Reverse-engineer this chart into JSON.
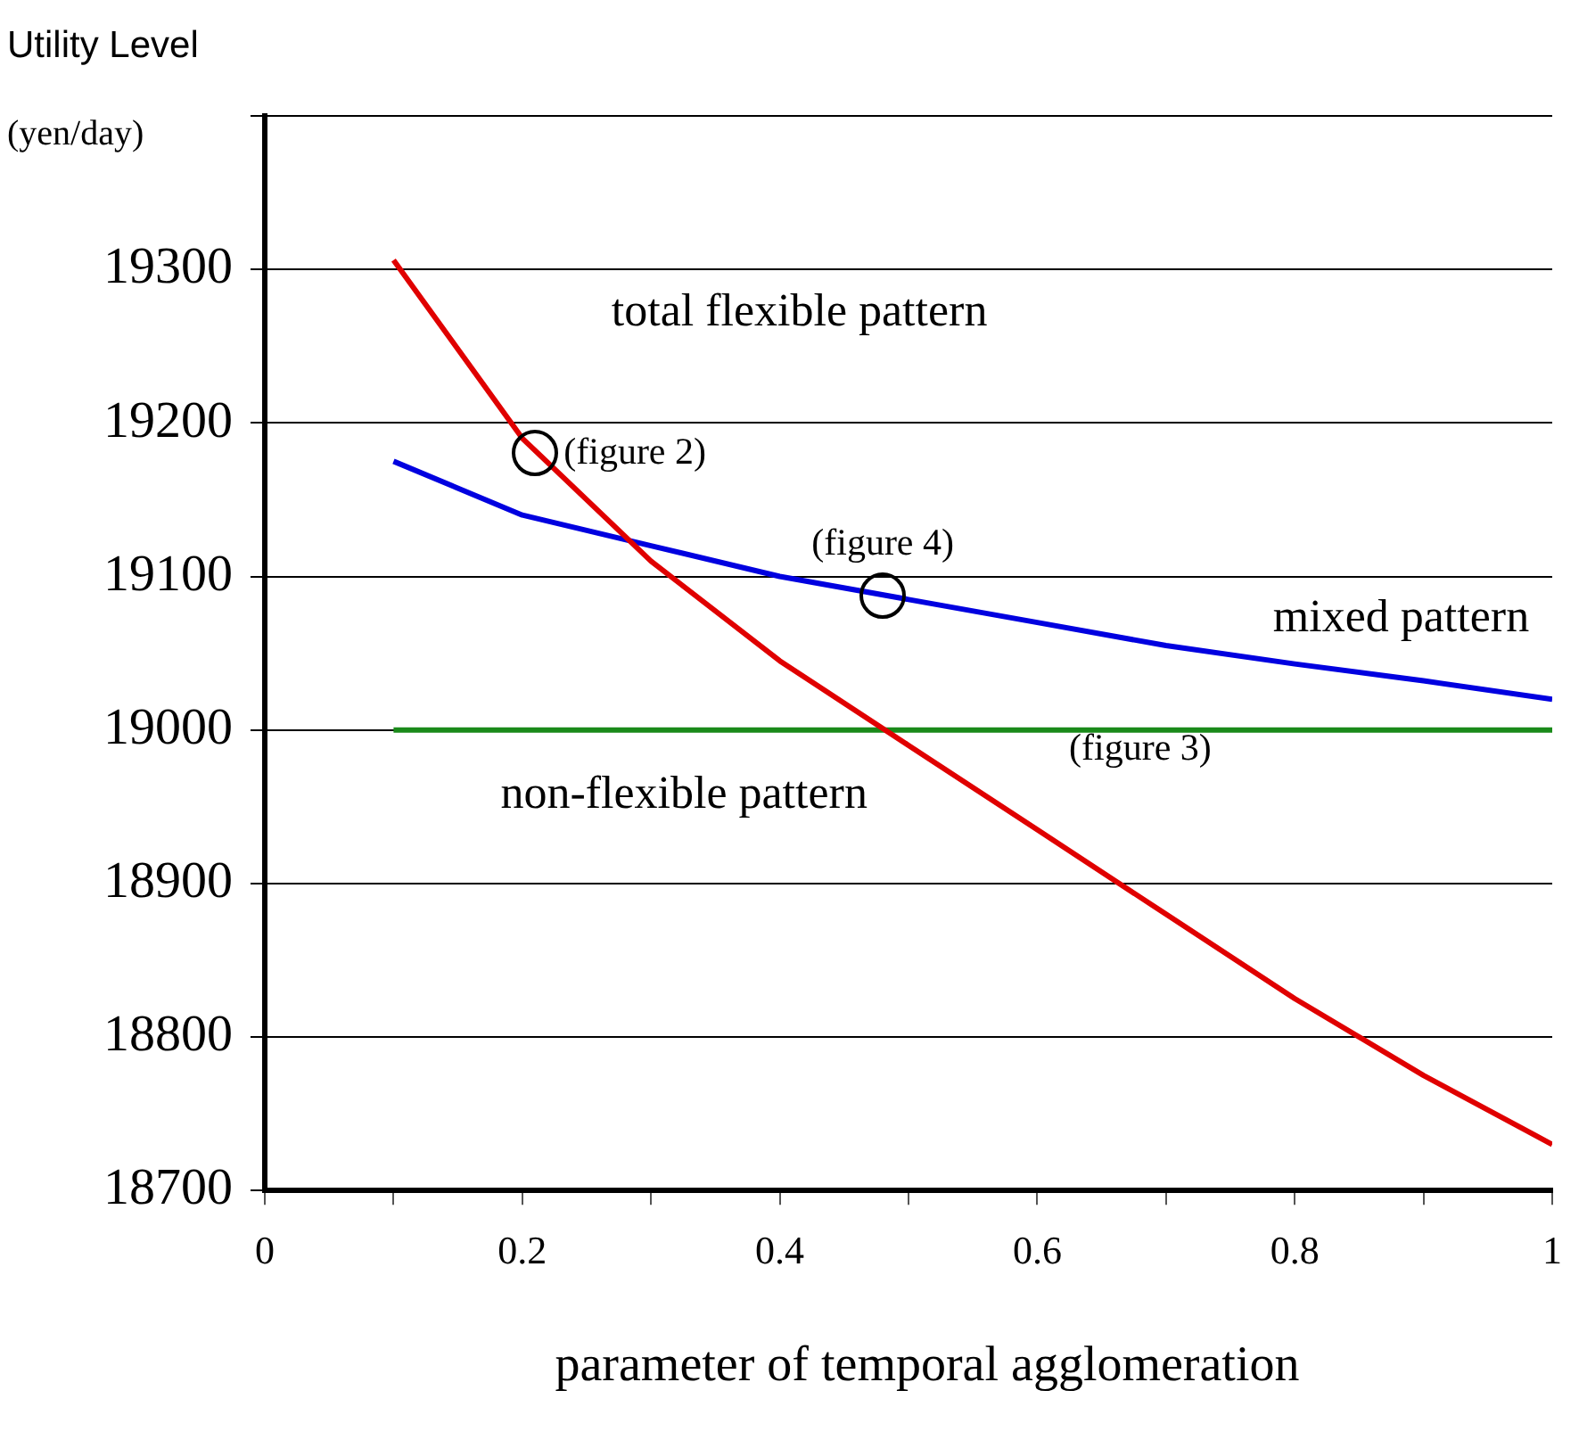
{
  "chart_data": {
    "type": "line",
    "title": "Utility Level",
    "ylabel": "(yen/day)",
    "xlabel": "parameter of temporal agglomeration",
    "x": [
      0.1,
      0.2,
      0.3,
      0.4,
      0.5,
      0.6,
      0.7,
      0.8,
      0.9,
      1.0
    ],
    "series": [
      {
        "name": "total flexible pattern",
        "color": "#e00000",
        "values": [
          19306,
          19190,
          19110,
          19045,
          18990,
          18935,
          18880,
          18825,
          18775,
          18730
        ]
      },
      {
        "name": "mixed pattern",
        "color": "#0000e0",
        "values": [
          19175,
          19140,
          19120,
          19100,
          19085,
          19070,
          19055,
          19043,
          19032,
          19020
        ]
      },
      {
        "name": "non-flexible pattern",
        "color": "#1a8a1a",
        "values": [
          19000,
          19000,
          19000,
          19000,
          19000,
          19000,
          19000,
          19000,
          19000,
          19000
        ]
      }
    ],
    "xlim": [
      0,
      1
    ],
    "xticks": [
      0,
      {
        "value": 0.1,
        "label": null
      },
      0.2,
      {
        "value": 0.3,
        "label": null
      },
      0.4,
      {
        "value": 0.5,
        "label": null
      },
      0.6,
      {
        "value": 0.7,
        "label": null
      },
      0.8,
      {
        "value": 0.9,
        "label": null
      },
      1
    ],
    "ylim": [
      18700,
      19400
    ],
    "yticks": [
      18700,
      18800,
      18900,
      19000,
      19100,
      19200,
      19300,
      {
        "value": 19400,
        "label": null
      }
    ],
    "annotations": [
      {
        "text": "(figure 2)",
        "x": 0.21,
        "y": 19180
      },
      {
        "text": "(figure 4)",
        "x": 0.48,
        "y": 19088
      },
      "(figure 3)"
    ],
    "grid": "y",
    "legend": false,
    "marker": "none",
    "line_style": "solid"
  }
}
